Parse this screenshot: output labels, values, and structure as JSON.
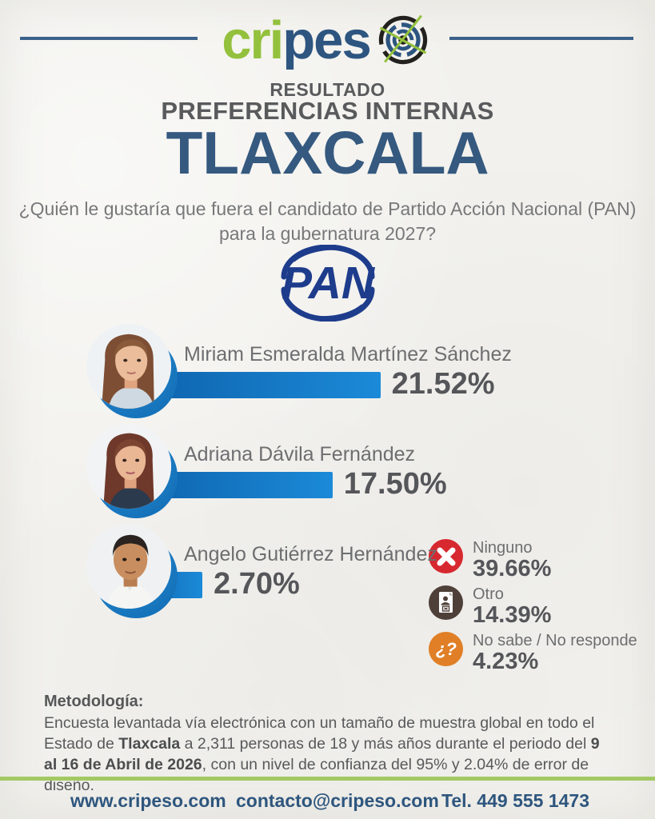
{
  "brand": {
    "logo_green": "cri",
    "logo_blue": "pes",
    "logo_icon": "target-crosshair-icon",
    "green": "#94c13d",
    "blue": "#2d5580"
  },
  "header": {
    "kicker": "RESULTADO",
    "subtitle": "PREFERENCIAS INTERNAS",
    "title": "TLAXCALA",
    "question_line1": "¿Quién le gustaría que fuera el candidato de Partido Acción Nacional (PAN)",
    "question_line2": "para la gubernatura 2027?"
  },
  "party_logo": {
    "text": "PAN",
    "color": "#1e3c8c"
  },
  "chart_data": {
    "type": "bar",
    "title": "Resultado preferencias internas Tlaxcala — candidato del PAN para la gubernatura 2027",
    "categories": [
      "Miriam Esmeralda Martínez Sánchez",
      "Adriana Dávila Fernández",
      "Angelo Gutiérrez Hernández"
    ],
    "values": [
      21.52,
      17.5,
      2.7
    ],
    "value_labels": [
      "21.52%",
      "17.50%",
      "2.70%"
    ],
    "bar_color_start": "#0d60aa",
    "bar_color_end": "#1b8ad8",
    "other_responses": [
      {
        "label": "Ninguno",
        "value": 39.66,
        "value_label": "39.66%",
        "icon": "x-circle-icon",
        "color": "#d7282f"
      },
      {
        "label": "Otro",
        "value": 14.39,
        "value_label": "14.39%",
        "icon": "ballot-icon",
        "color": "#4e4038"
      },
      {
        "label": "No sabe / No responde",
        "value": 4.23,
        "value_label": "4.23%",
        "icon": "question-icon",
        "color": "#e07f26"
      }
    ],
    "question_glyph": "¿?"
  },
  "methodology": {
    "heading": "Metodología:",
    "seg1": "Encuesta levantada vía electrónica con un tamaño de muestra global en todo el Estado de ",
    "bold1": "Tlaxcala",
    "seg2": " a 2,311 personas de 18 y más años durante el periodo del ",
    "bold2": "9 al 16 de Abril de 2026",
    "seg3": ", con un nivel de confianza del 95% y 2.04% de error de diseño."
  },
  "footer": {
    "website": "www.cripeso.com",
    "email": "contacto@cripeso.com",
    "phone": "Tel. 449 555 1473"
  }
}
